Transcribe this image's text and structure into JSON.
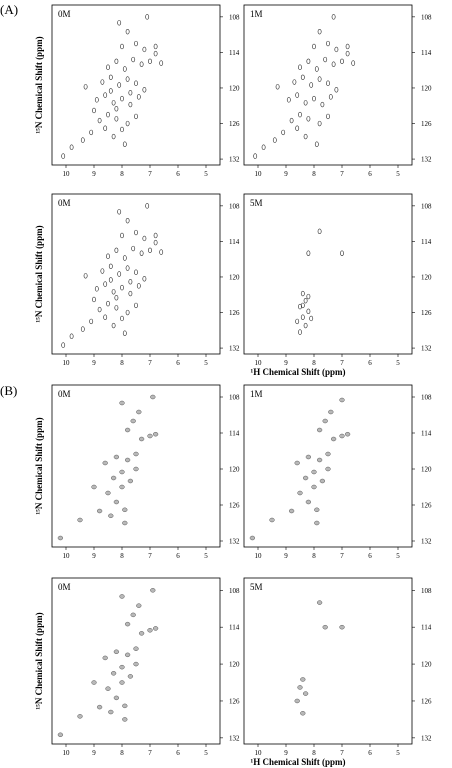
{
  "figure": {
    "section_labels": [
      "(A)",
      "(B)"
    ],
    "x_axis_label": "¹H Chemical Shift (ppm)",
    "y_axis_label": "¹⁵N Chemical Shift (ppm)"
  },
  "chart_data": [
    {
      "type": "scatter",
      "section": "(A)",
      "panel_label": "0M",
      "xlim": [
        10.5,
        4.5
      ],
      "ylim": [
        106,
        133
      ],
      "xticks": [
        10,
        9,
        8,
        7,
        6,
        5
      ],
      "yticks": [
        108,
        114,
        120,
        126,
        132
      ],
      "xlabel": "",
      "ylabel": "¹⁵N Chemical Shift (ppm)",
      "points": [
        [
          10.1,
          131.5
        ],
        [
          9.8,
          130.0
        ],
        [
          9.4,
          128.8
        ],
        [
          9.1,
          127.5
        ],
        [
          8.6,
          126.8
        ],
        [
          8.3,
          128.2
        ],
        [
          7.9,
          129.5
        ],
        [
          8.8,
          125.5
        ],
        [
          8.5,
          124.5
        ],
        [
          8.2,
          125.2
        ],
        [
          7.8,
          126.0
        ],
        [
          7.5,
          124.8
        ],
        [
          8.9,
          122.0
        ],
        [
          8.6,
          121.2
        ],
        [
          8.3,
          122.5
        ],
        [
          8.0,
          121.8
        ],
        [
          7.7,
          122.8
        ],
        [
          7.4,
          121.5
        ],
        [
          9.3,
          119.8
        ],
        [
          8.7,
          119.0
        ],
        [
          8.4,
          118.2
        ],
        [
          8.1,
          119.5
        ],
        [
          7.8,
          118.5
        ],
        [
          7.5,
          119.2
        ],
        [
          7.2,
          120.3
        ],
        [
          8.5,
          116.5
        ],
        [
          8.2,
          115.5
        ],
        [
          7.9,
          116.8
        ],
        [
          7.6,
          115.2
        ],
        [
          7.3,
          116.0
        ],
        [
          7.0,
          115.5
        ],
        [
          6.8,
          114.2
        ],
        [
          8.0,
          113.0
        ],
        [
          7.5,
          112.5
        ],
        [
          7.2,
          113.5
        ],
        [
          6.8,
          113.0
        ],
        [
          6.6,
          115.8
        ],
        [
          7.8,
          110.5
        ],
        [
          8.1,
          109.0
        ],
        [
          7.1,
          108.0
        ],
        [
          8.2,
          123.5
        ],
        [
          8.0,
          127.0
        ],
        [
          8.4,
          120.5
        ],
        [
          7.7,
          120.8
        ],
        [
          9.0,
          123.8
        ]
      ]
    },
    {
      "type": "scatter",
      "section": "(A)",
      "panel_label": "1M",
      "xlim": [
        10.5,
        4.5
      ],
      "ylim": [
        106,
        133
      ],
      "xticks": [
        10,
        9,
        8,
        7,
        6,
        5
      ],
      "yticks": [
        108,
        114,
        120,
        126,
        132
      ],
      "xlabel": "",
      "ylabel": "",
      "points": [
        [
          10.1,
          131.5
        ],
        [
          9.8,
          130.0
        ],
        [
          9.4,
          128.8
        ],
        [
          9.1,
          127.5
        ],
        [
          8.6,
          126.8
        ],
        [
          8.3,
          128.2
        ],
        [
          7.9,
          129.5
        ],
        [
          8.8,
          125.5
        ],
        [
          8.5,
          124.5
        ],
        [
          8.2,
          125.2
        ],
        [
          7.8,
          126.0
        ],
        [
          7.5,
          124.8
        ],
        [
          8.9,
          122.0
        ],
        [
          8.6,
          121.2
        ],
        [
          8.3,
          122.5
        ],
        [
          8.0,
          121.8
        ],
        [
          7.7,
          122.8
        ],
        [
          7.4,
          121.5
        ],
        [
          9.3,
          119.8
        ],
        [
          8.7,
          119.0
        ],
        [
          8.4,
          118.2
        ],
        [
          8.1,
          119.5
        ],
        [
          7.8,
          118.5
        ],
        [
          7.5,
          119.2
        ],
        [
          7.2,
          120.3
        ],
        [
          8.5,
          116.5
        ],
        [
          8.2,
          115.5
        ],
        [
          7.9,
          116.8
        ],
        [
          7.6,
          115.2
        ],
        [
          7.3,
          116.0
        ],
        [
          7.0,
          115.5
        ],
        [
          6.8,
          114.2
        ],
        [
          8.0,
          113.0
        ],
        [
          7.5,
          112.5
        ],
        [
          7.2,
          113.5
        ],
        [
          6.8,
          113.0
        ],
        [
          6.6,
          115.8
        ],
        [
          7.8,
          110.5
        ],
        [
          7.3,
          108.0
        ]
      ]
    },
    {
      "type": "scatter",
      "section": "(A)",
      "panel_label": "0M",
      "xlim": [
        10.5,
        4.5
      ],
      "ylim": [
        106,
        133
      ],
      "xticks": [
        10,
        9,
        8,
        7,
        6,
        5
      ],
      "yticks": [
        108,
        114,
        120,
        126,
        132
      ],
      "xlabel": "",
      "ylabel": "¹⁵N Chemical Shift (ppm)",
      "points": [
        [
          10.1,
          131.5
        ],
        [
          9.8,
          130.0
        ],
        [
          9.4,
          128.8
        ],
        [
          9.1,
          127.5
        ],
        [
          8.6,
          126.8
        ],
        [
          8.3,
          128.2
        ],
        [
          7.9,
          129.5
        ],
        [
          8.8,
          125.5
        ],
        [
          8.5,
          124.5
        ],
        [
          8.2,
          125.2
        ],
        [
          7.8,
          126.0
        ],
        [
          7.5,
          124.8
        ],
        [
          8.9,
          122.0
        ],
        [
          8.6,
          121.2
        ],
        [
          8.3,
          122.5
        ],
        [
          8.0,
          121.8
        ],
        [
          7.7,
          122.8
        ],
        [
          7.4,
          121.5
        ],
        [
          9.3,
          119.8
        ],
        [
          8.7,
          119.0
        ],
        [
          8.4,
          118.2
        ],
        [
          8.1,
          119.5
        ],
        [
          7.8,
          118.5
        ],
        [
          7.5,
          119.2
        ],
        [
          7.2,
          120.3
        ],
        [
          8.5,
          116.5
        ],
        [
          8.2,
          115.5
        ],
        [
          7.9,
          116.8
        ],
        [
          7.6,
          115.2
        ],
        [
          7.3,
          116.0
        ],
        [
          7.0,
          115.5
        ],
        [
          6.8,
          114.2
        ],
        [
          8.0,
          113.0
        ],
        [
          7.5,
          112.5
        ],
        [
          7.2,
          113.5
        ],
        [
          6.8,
          113.0
        ],
        [
          6.6,
          115.8
        ],
        [
          7.8,
          110.5
        ],
        [
          8.1,
          109.0
        ],
        [
          7.1,
          108.0
        ],
        [
          8.2,
          123.5
        ],
        [
          8.0,
          127.0
        ],
        [
          8.4,
          120.5
        ],
        [
          7.7,
          120.8
        ],
        [
          9.0,
          123.8
        ]
      ]
    },
    {
      "type": "scatter",
      "section": "(A)",
      "panel_label": "5M",
      "xlim": [
        10.5,
        4.5
      ],
      "ylim": [
        106,
        133
      ],
      "xticks": [
        10,
        9,
        8,
        7,
        6,
        5
      ],
      "yticks": [
        108,
        114,
        120,
        126,
        132
      ],
      "xlabel": "¹H Chemical Shift (ppm)",
      "ylabel": "",
      "points": [
        [
          7.8,
          112.3
        ],
        [
          8.2,
          116.0
        ],
        [
          7.0,
          116.0
        ],
        [
          8.4,
          122.8
        ],
        [
          8.3,
          124.0
        ],
        [
          8.5,
          125.0
        ],
        [
          8.2,
          125.8
        ],
        [
          8.4,
          126.8
        ],
        [
          8.6,
          127.5
        ],
        [
          8.3,
          128.2
        ],
        [
          8.5,
          129.3
        ],
        [
          8.1,
          127.0
        ],
        [
          8.4,
          124.8
        ],
        [
          8.2,
          123.3
        ]
      ]
    },
    {
      "type": "scatter",
      "section": "(B)",
      "panel_label": "0M",
      "xlim": [
        10.5,
        4.5
      ],
      "ylim": [
        106,
        133
      ],
      "xticks": [
        10,
        9,
        8,
        7,
        6,
        5
      ],
      "yticks": [
        108,
        114,
        120,
        126,
        132
      ],
      "xlabel": "",
      "ylabel": "¹⁵N Chemical Shift (ppm)",
      "points": [
        [
          10.2,
          131.5
        ],
        [
          9.5,
          128.5
        ],
        [
          8.8,
          127.0
        ],
        [
          8.2,
          125.5
        ],
        [
          7.9,
          126.8
        ],
        [
          8.5,
          124.0
        ],
        [
          8.0,
          123.0
        ],
        [
          7.7,
          122.0
        ],
        [
          8.3,
          121.5
        ],
        [
          8.0,
          120.5
        ],
        [
          7.5,
          120.0
        ],
        [
          8.6,
          119.0
        ],
        [
          8.2,
          118.0
        ],
        [
          7.8,
          118.5
        ],
        [
          7.5,
          117.5
        ],
        [
          7.3,
          115.0
        ],
        [
          7.0,
          114.5
        ],
        [
          6.8,
          114.2
        ],
        [
          7.8,
          113.5
        ],
        [
          7.6,
          112.0
        ],
        [
          7.4,
          110.5
        ],
        [
          8.0,
          109.0
        ],
        [
          6.9,
          108.0
        ],
        [
          7.9,
          129.0
        ],
        [
          8.4,
          127.8
        ],
        [
          9.0,
          123.0
        ]
      ]
    },
    {
      "type": "scatter",
      "section": "(B)",
      "panel_label": "1M",
      "xlim": [
        10.5,
        4.5
      ],
      "ylim": [
        106,
        133
      ],
      "xticks": [
        10,
        9,
        8,
        7,
        6,
        5
      ],
      "yticks": [
        108,
        114,
        120,
        126,
        132
      ],
      "xlabel": "",
      "ylabel": "",
      "points": [
        [
          10.2,
          131.5
        ],
        [
          9.5,
          128.5
        ],
        [
          8.8,
          127.0
        ],
        [
          8.2,
          125.5
        ],
        [
          7.9,
          126.8
        ],
        [
          8.5,
          124.0
        ],
        [
          8.0,
          123.0
        ],
        [
          7.7,
          122.0
        ],
        [
          8.3,
          121.5
        ],
        [
          8.0,
          120.5
        ],
        [
          7.5,
          120.0
        ],
        [
          8.6,
          119.0
        ],
        [
          8.2,
          118.0
        ],
        [
          7.8,
          118.5
        ],
        [
          7.5,
          117.5
        ],
        [
          7.3,
          115.0
        ],
        [
          7.0,
          114.5
        ],
        [
          6.8,
          114.2
        ],
        [
          7.8,
          113.5
        ],
        [
          7.6,
          112.0
        ],
        [
          7.4,
          110.5
        ],
        [
          7.0,
          108.5
        ],
        [
          7.9,
          129.0
        ]
      ]
    },
    {
      "type": "scatter",
      "section": "(B)",
      "panel_label": "0M",
      "xlim": [
        10.5,
        4.5
      ],
      "ylim": [
        106,
        133
      ],
      "xticks": [
        10,
        9,
        8,
        7,
        6,
        5
      ],
      "yticks": [
        108,
        114,
        120,
        126,
        132
      ],
      "xlabel": "",
      "ylabel": "¹⁵N Chemical Shift (ppm)",
      "points": [
        [
          10.2,
          131.5
        ],
        [
          9.5,
          128.5
        ],
        [
          8.8,
          127.0
        ],
        [
          8.2,
          125.5
        ],
        [
          7.9,
          126.8
        ],
        [
          8.5,
          124.0
        ],
        [
          8.0,
          123.0
        ],
        [
          7.7,
          122.0
        ],
        [
          8.3,
          121.5
        ],
        [
          8.0,
          120.5
        ],
        [
          7.5,
          120.0
        ],
        [
          8.6,
          119.0
        ],
        [
          8.2,
          118.0
        ],
        [
          7.8,
          118.5
        ],
        [
          7.5,
          117.5
        ],
        [
          7.3,
          115.0
        ],
        [
          7.0,
          114.5
        ],
        [
          6.8,
          114.2
        ],
        [
          7.8,
          113.5
        ],
        [
          7.6,
          112.0
        ],
        [
          7.4,
          110.5
        ],
        [
          8.0,
          109.0
        ],
        [
          6.9,
          108.0
        ],
        [
          7.9,
          129.0
        ],
        [
          8.4,
          127.8
        ],
        [
          9.0,
          123.0
        ]
      ]
    },
    {
      "type": "scatter",
      "section": "(B)",
      "panel_label": "5M",
      "xlim": [
        10.5,
        4.5
      ],
      "ylim": [
        106,
        133
      ],
      "xticks": [
        10,
        9,
        8,
        7,
        6,
        5
      ],
      "yticks": [
        108,
        114,
        120,
        126,
        132
      ],
      "xlabel": "¹H Chemical Shift (ppm)",
      "ylabel": "",
      "points": [
        [
          7.8,
          110.0
        ],
        [
          7.6,
          114.0
        ],
        [
          7.0,
          114.0
        ],
        [
          8.4,
          122.5
        ],
        [
          8.5,
          123.8
        ],
        [
          8.3,
          124.8
        ],
        [
          8.6,
          126.0
        ],
        [
          8.4,
          128.0
        ]
      ]
    }
  ]
}
